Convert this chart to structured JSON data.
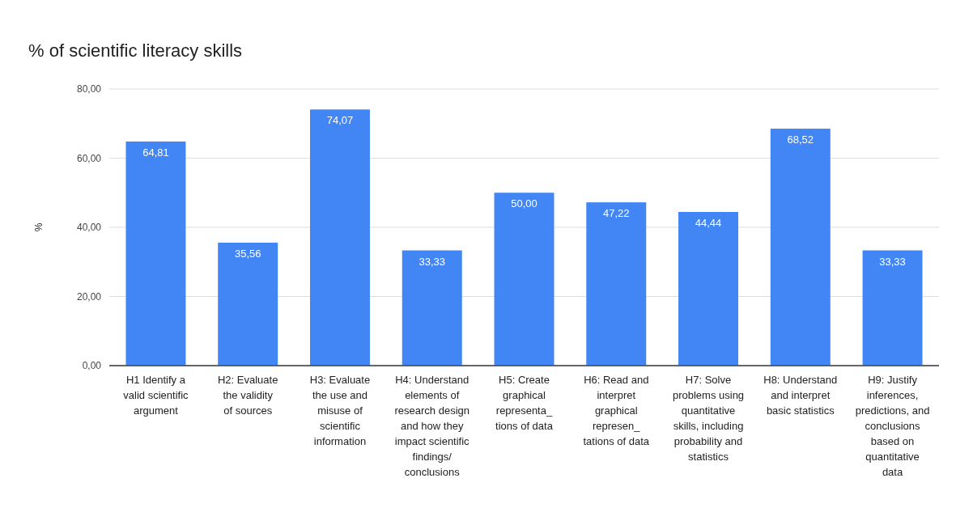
{
  "chart_data": {
    "type": "bar",
    "title": "% of scientific literacy skills",
    "ylabel": "%",
    "categories": [
      "H1 Identify a\nvalid scientific\nargument",
      "H2: Evaluate\nthe validity\nof sources",
      "H3: Evaluate\nthe use and\nmisuse of\nscientific\ninformation",
      "H4: Understand\nelements of\nresearch design\nand how they\nimpact scientific\nfindings/\nconclusions",
      "H5: Create\ngraphical\nrepresenta_\ntions of data",
      "H6: Read and\ninterpret\ngraphical\nrepresen_\ntations of data",
      "H7: Solve\nproblems using\nquantitative\nskills, including\nprobability and\nstatistics",
      "H8: Understand\nand interpret\nbasic statistics",
      "H9: Justify\ninferences,\npredictions, and\nconclusions\nbased on\nquantitative\ndata"
    ],
    "values": [
      64.81,
      35.56,
      74.07,
      33.33,
      50.0,
      47.22,
      44.44,
      68.52,
      33.33
    ],
    "value_labels": [
      "64,81",
      "35,56",
      "74,07",
      "33,33",
      "50,00",
      "47,22",
      "44,44",
      "68,52",
      "33,33"
    ],
    "color": "#4285f4",
    "ylim": [
      0,
      80
    ],
    "yticks": [
      {
        "value": 0,
        "label": "0,00"
      },
      {
        "value": 20,
        "label": "20,00"
      },
      {
        "value": 40,
        "label": "40,00"
      },
      {
        "value": 60,
        "label": "60,00"
      },
      {
        "value": 80,
        "label": "80,00"
      }
    ],
    "grid": "y"
  }
}
